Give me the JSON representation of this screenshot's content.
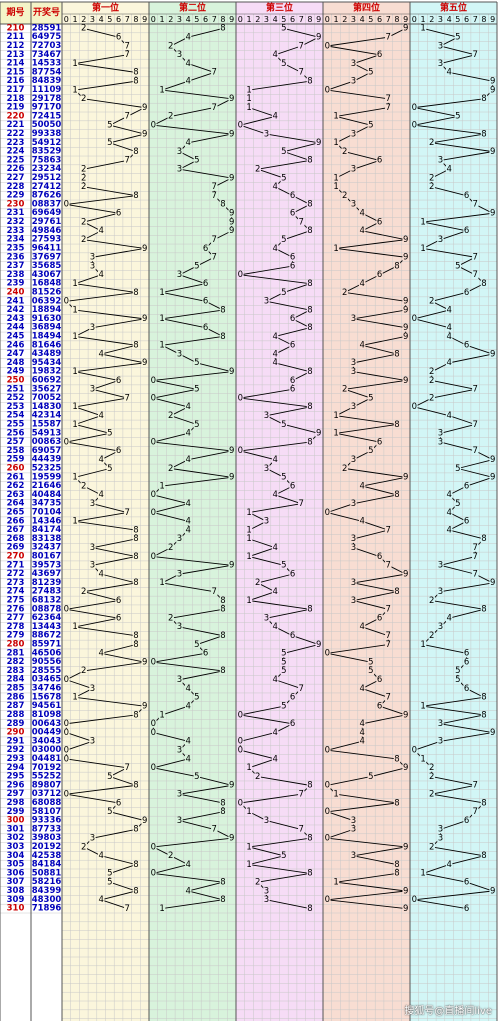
{
  "header": {
    "issue_label": "期号",
    "number_label": "开奖号",
    "position_labels": [
      "第一位",
      "第二位",
      "第三位",
      "第四位",
      "第五位"
    ],
    "digit_labels": [
      "0",
      "1",
      "2",
      "3",
      "4",
      "5",
      "6",
      "7",
      "8",
      "9"
    ]
  },
  "colors": {
    "positions": [
      "#fbf6dc",
      "#d8f3dc",
      "#f6dcf6",
      "#f8ddd2",
      "#d2f6f6"
    ],
    "header_bg": "#f4f4c8",
    "issue_text": "#0000bb",
    "issue_highlight": "#cc0000",
    "number_text": "#0000bb",
    "position_title": "#cc0000",
    "line": "#000000",
    "grid": "#c8c8c8",
    "border": "#555555"
  },
  "watermark": "搜狐号@直播间live",
  "chart_data": {
    "type": "table",
    "title": "",
    "issues": [
      "210",
      "211",
      "212",
      "213",
      "214",
      "215",
      "216",
      "217",
      "218",
      "219",
      "220",
      "221",
      "222",
      "223",
      "224",
      "225",
      "226",
      "227",
      "228",
      "229",
      "230",
      "231",
      "232",
      "233",
      "234",
      "235",
      "236",
      "237",
      "238",
      "239",
      "240",
      "241",
      "242",
      "243",
      "244",
      "245",
      "246",
      "247",
      "248",
      "249",
      "250",
      "251",
      "252",
      "253",
      "254",
      "255",
      "256",
      "257",
      "258",
      "259",
      "260",
      "261",
      "262",
      "263",
      "264",
      "265",
      "266",
      "267",
      "268",
      "269",
      "270",
      "271",
      "272",
      "273",
      "274",
      "275",
      "276",
      "277",
      "278",
      "279",
      "280",
      "281",
      "282",
      "283",
      "284",
      "285",
      "286",
      "287",
      "288",
      "289",
      "290",
      "291",
      "292",
      "293",
      "294",
      "295",
      "296",
      "297",
      "298",
      "299",
      "300",
      "301",
      "302",
      "303",
      "304",
      "305",
      "306",
      "307",
      "308",
      "309",
      "310"
    ],
    "highlight_issues": [
      "210",
      "220",
      "230",
      "240",
      "250",
      "260",
      "270",
      "280",
      "290",
      "300",
      "310"
    ],
    "numbers": [
      "28591",
      "64975",
      "72703",
      "73467",
      "14533",
      "87754",
      "84839",
      "11109",
      "29178",
      "97170",
      "72415",
      "50050",
      "99338",
      "54912",
      "83529",
      "75863",
      "23234",
      "29512",
      "27412",
      "87626",
      "08837",
      "69649",
      "29761",
      "49846",
      "27593",
      "96411",
      "37697",
      "35685",
      "43067",
      "16848",
      "81526",
      "06392",
      "18894",
      "91630",
      "36894",
      "18494",
      "81646",
      "43489",
      "95434",
      "19832",
      "60692",
      "35627",
      "70052",
      "14830",
      "42314",
      "15587",
      "54913",
      "00863",
      "69057",
      "44439",
      "52325",
      "19599",
      "21646",
      "40484",
      "34735",
      "70104",
      "14346",
      "84174",
      "83138",
      "32437",
      "80167",
      "39573",
      "43697",
      "81239",
      "27483",
      "68132",
      "08878",
      "62364",
      "13443",
      "88672",
      "85971",
      "46506",
      "90556",
      "28555",
      "03465",
      "34746",
      "15678",
      "94561",
      "81098",
      "00643",
      "00449",
      "34043",
      "03000",
      "04481",
      "70192",
      "55252",
      "89807",
      "03712",
      "68088",
      "58107",
      "93336",
      "87733",
      "39803",
      "20192",
      "42538",
      "84184",
      "50881",
      "58216",
      "84399",
      "48300",
      "71896"
    ]
  }
}
